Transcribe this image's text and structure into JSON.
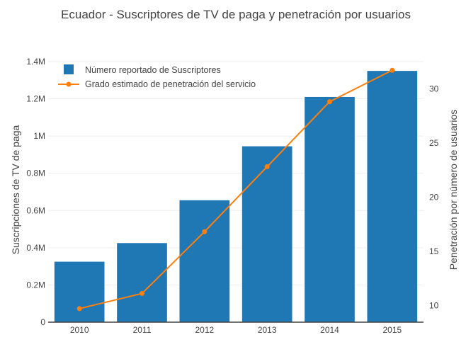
{
  "chart_data": {
    "type": "bar",
    "title": "Ecuador - Suscriptores de TV de paga y penetración por usuarios",
    "categories": [
      "2010",
      "2011",
      "2012",
      "2013",
      "2014",
      "2015"
    ],
    "series": [
      {
        "name": "Número reportado de Suscriptores",
        "type": "bar",
        "axis": "left",
        "color": "#1f77b4",
        "values": [
          325000,
          425000,
          655000,
          945000,
          1210000,
          1350000
        ]
      },
      {
        "name": "Grado estimado de penetración del servicio",
        "type": "line",
        "axis": "right",
        "color": "#ff7f0e",
        "values": [
          9.7,
          11.1,
          16.8,
          22.8,
          28.8,
          31.7
        ]
      }
    ],
    "ylabel_left": "Suscripciones de TV de paga",
    "ylabel_right": "Penetración por número de usuarios",
    "xlabel": "",
    "ylim_left": [
      0,
      1400000
    ],
    "ylim_right": [
      8.45,
      32.5
    ],
    "left_ticks": [
      {
        "value": 0,
        "label": "0"
      },
      {
        "value": 200000,
        "label": "0.2M"
      },
      {
        "value": 400000,
        "label": "0.4M"
      },
      {
        "value": 600000,
        "label": "0.6M"
      },
      {
        "value": 800000,
        "label": "0.8M"
      },
      {
        "value": 1000000,
        "label": "1M"
      },
      {
        "value": 1200000,
        "label": "1.2M"
      },
      {
        "value": 1400000,
        "label": "1.4M"
      }
    ],
    "right_ticks": [
      {
        "value": 10,
        "label": "10"
      },
      {
        "value": 15,
        "label": "15"
      },
      {
        "value": 20,
        "label": "20"
      },
      {
        "value": 25,
        "label": "25"
      },
      {
        "value": 30,
        "label": "30"
      }
    ],
    "grid": true,
    "legend_position": "top-left"
  }
}
